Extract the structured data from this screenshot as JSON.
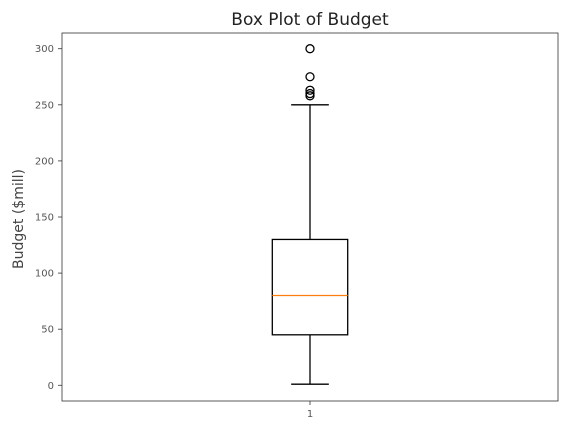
{
  "chart_data": {
    "type": "box",
    "title": "Box Plot of Budget",
    "xlabel": "",
    "ylabel": "Budget ($mill)",
    "categories": [
      "1"
    ],
    "ylim": [
      -14,
      314
    ],
    "yticks": [
      0,
      50,
      100,
      150,
      200,
      250,
      300
    ],
    "grid": false,
    "series": [
      {
        "whisker_low": 1,
        "q1": 45,
        "median": 80,
        "q3": 130,
        "whisker_high": 250,
        "outliers": [
          258,
          260,
          263,
          275,
          300
        ]
      }
    ],
    "colors": {
      "box": "#000000",
      "median": "#ff7f0e",
      "outlier": "#000000"
    }
  }
}
